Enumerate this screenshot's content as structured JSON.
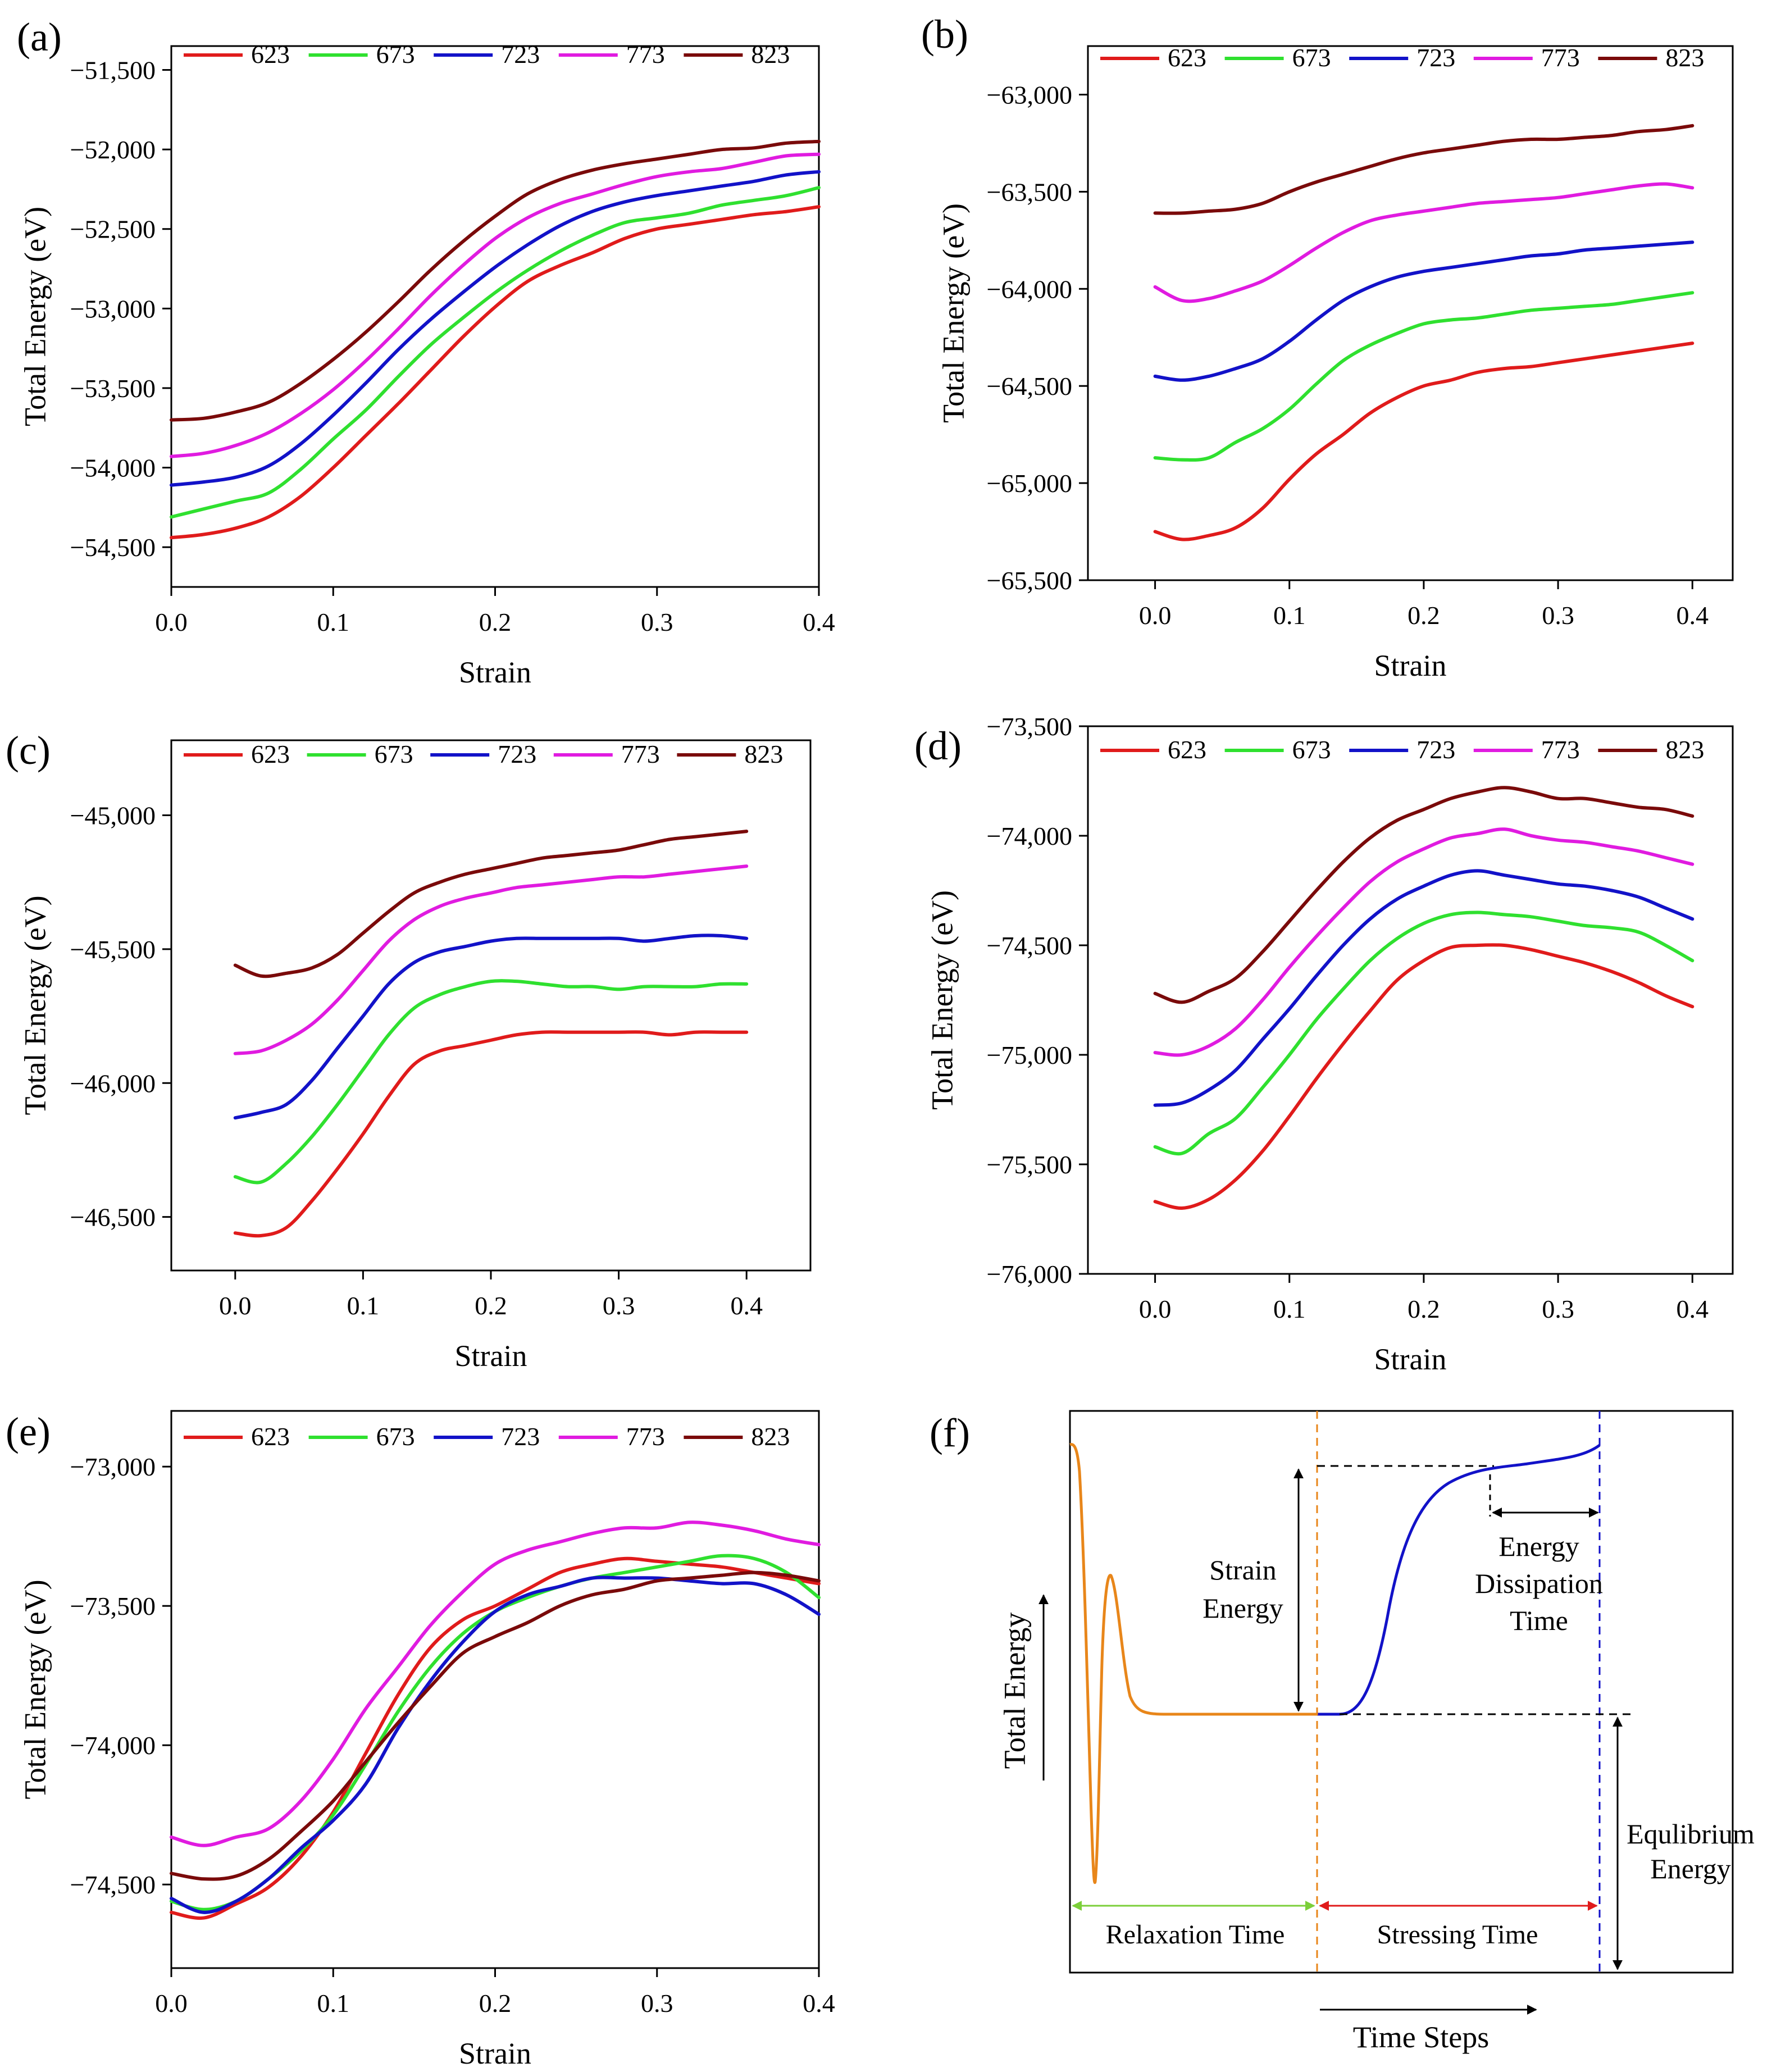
{
  "figure": {
    "series_labels": [
      "623",
      "673",
      "723",
      "773",
      "823"
    ],
    "series_colors": [
      "#e01b1b",
      "#2fe02f",
      "#1212c8",
      "#e01be0",
      "#7a0a0a"
    ]
  },
  "chart_data": [
    {
      "panel": "(a)",
      "type": "line",
      "xlabel": "Strain",
      "ylabel": "Total Energy (eV)",
      "xlim": [
        0.0,
        0.4
      ],
      "ylim": [
        -54750,
        -51350
      ],
      "xticks": [
        0.0,
        0.1,
        0.2,
        0.3,
        0.4
      ],
      "xtick_labels": [
        "0.0",
        "0.1",
        "0.2",
        "0.3",
        "0.4"
      ],
      "yticks": [
        -51500,
        -52000,
        -52500,
        -53000,
        -53500,
        -54000,
        -54500
      ],
      "ytick_labels": [
        "−51,500",
        "−52,000",
        "−52,500",
        "−53,000",
        "−53,500",
        "−54,000",
        "−54,500"
      ],
      "legend": "top",
      "x": [
        0.0,
        0.02,
        0.04,
        0.06,
        0.08,
        0.1,
        0.12,
        0.14,
        0.16,
        0.18,
        0.2,
        0.22,
        0.24,
        0.26,
        0.28,
        0.3,
        0.32,
        0.34,
        0.36,
        0.38,
        0.4
      ],
      "series": [
        {
          "name": "623",
          "values": [
            -54440,
            -54420,
            -54380,
            -54310,
            -54180,
            -54000,
            -53800,
            -53600,
            -53390,
            -53180,
            -52990,
            -52830,
            -52730,
            -52650,
            -52560,
            -52500,
            -52470,
            -52440,
            -52410,
            -52390,
            -52360
          ]
        },
        {
          "name": "673",
          "values": [
            -54310,
            -54260,
            -54210,
            -54160,
            -54010,
            -53820,
            -53640,
            -53430,
            -53230,
            -53060,
            -52900,
            -52760,
            -52640,
            -52540,
            -52460,
            -52430,
            -52400,
            -52350,
            -52320,
            -52290,
            -52240
          ]
        },
        {
          "name": "723",
          "values": [
            -54110,
            -54090,
            -54060,
            -53990,
            -53850,
            -53670,
            -53470,
            -53260,
            -53070,
            -52900,
            -52740,
            -52600,
            -52480,
            -52390,
            -52330,
            -52290,
            -52260,
            -52230,
            -52200,
            -52160,
            -52140
          ]
        },
        {
          "name": "773",
          "values": [
            -53930,
            -53910,
            -53860,
            -53780,
            -53660,
            -53510,
            -53330,
            -53130,
            -52920,
            -52730,
            -52560,
            -52430,
            -52340,
            -52280,
            -52220,
            -52170,
            -52140,
            -52120,
            -52080,
            -52040,
            -52030
          ]
        },
        {
          "name": "823",
          "values": [
            -53700,
            -53690,
            -53650,
            -53590,
            -53470,
            -53320,
            -53150,
            -52960,
            -52760,
            -52580,
            -52420,
            -52280,
            -52190,
            -52130,
            -52090,
            -52060,
            -52030,
            -52000,
            -51990,
            -51960,
            -51950
          ]
        }
      ]
    },
    {
      "panel": "(b)",
      "type": "line",
      "xlabel": "Strain",
      "ylabel": "Total Energy (eV)",
      "xlim": [
        -0.05,
        0.43
      ],
      "ylim": [
        -65500,
        -62750
      ],
      "xticks": [
        0.0,
        0.1,
        0.2,
        0.3,
        0.4
      ],
      "xtick_labels": [
        "0.0",
        "0.1",
        "0.2",
        "0.3",
        "0.4"
      ],
      "yticks": [
        -63000,
        -63500,
        -64000,
        -64500,
        -65000,
        -65500
      ],
      "ytick_labels": [
        "−63,000",
        "−63,500",
        "−64,000",
        "−64,500",
        "−65,000",
        "−65,500"
      ],
      "legend": "top",
      "x": [
        0.0,
        0.02,
        0.04,
        0.06,
        0.08,
        0.1,
        0.12,
        0.14,
        0.16,
        0.18,
        0.2,
        0.22,
        0.24,
        0.26,
        0.28,
        0.3,
        0.32,
        0.34,
        0.36,
        0.38,
        0.4
      ],
      "series": [
        {
          "name": "623",
          "values": [
            -65250,
            -65290,
            -65270,
            -65230,
            -65130,
            -64980,
            -64850,
            -64750,
            -64640,
            -64560,
            -64500,
            -64470,
            -64430,
            -64410,
            -64400,
            -64380,
            -64360,
            -64340,
            -64320,
            -64300,
            -64280
          ]
        },
        {
          "name": "673",
          "values": [
            -64870,
            -64880,
            -64870,
            -64790,
            -64720,
            -64620,
            -64490,
            -64370,
            -64290,
            -64230,
            -64180,
            -64160,
            -64150,
            -64130,
            -64110,
            -64100,
            -64090,
            -64080,
            -64060,
            -64040,
            -64020
          ]
        },
        {
          "name": "723",
          "values": [
            -64450,
            -64470,
            -64450,
            -64410,
            -64360,
            -64270,
            -64160,
            -64060,
            -63990,
            -63940,
            -63910,
            -63890,
            -63870,
            -63850,
            -63830,
            -63820,
            -63800,
            -63790,
            -63780,
            -63770,
            -63760
          ]
        },
        {
          "name": "773",
          "values": [
            -63990,
            -64060,
            -64050,
            -64010,
            -63960,
            -63880,
            -63790,
            -63710,
            -63650,
            -63620,
            -63600,
            -63580,
            -63560,
            -63550,
            -63540,
            -63530,
            -63510,
            -63490,
            -63470,
            -63460,
            -63480
          ]
        },
        {
          "name": "823",
          "values": [
            -63610,
            -63610,
            -63600,
            -63590,
            -63560,
            -63500,
            -63450,
            -63410,
            -63370,
            -63330,
            -63300,
            -63280,
            -63260,
            -63240,
            -63230,
            -63230,
            -63220,
            -63210,
            -63190,
            -63180,
            -63160
          ]
        }
      ]
    },
    {
      "panel": "(c)",
      "type": "line",
      "xlabel": "Strain",
      "ylabel": "Total Energy (eV)",
      "xlim": [
        -0.05,
        0.45
      ],
      "ylim": [
        -46700,
        -44720
      ],
      "xticks": [
        0.0,
        0.1,
        0.2,
        0.3,
        0.4
      ],
      "xtick_labels": [
        "0.0",
        "0.1",
        "0.2",
        "0.3",
        "0.4"
      ],
      "yticks": [
        -45000,
        -45500,
        -46000,
        -46500
      ],
      "ytick_labels": [
        "−45,000",
        "−45,500",
        "−46,000",
        "−46,500"
      ],
      "legend": "top",
      "x": [
        0.0,
        0.02,
        0.04,
        0.06,
        0.08,
        0.1,
        0.12,
        0.14,
        0.16,
        0.18,
        0.2,
        0.22,
        0.24,
        0.26,
        0.28,
        0.3,
        0.32,
        0.34,
        0.36,
        0.38,
        0.4
      ],
      "series": [
        {
          "name": "623",
          "values": [
            -46560,
            -46570,
            -46540,
            -46440,
            -46320,
            -46190,
            -46050,
            -45930,
            -45880,
            -45860,
            -45840,
            -45820,
            -45810,
            -45810,
            -45810,
            -45810,
            -45810,
            -45820,
            -45810,
            -45810,
            -45810
          ]
        },
        {
          "name": "673",
          "values": [
            -46350,
            -46370,
            -46300,
            -46200,
            -46080,
            -45950,
            -45820,
            -45720,
            -45670,
            -45640,
            -45620,
            -45620,
            -45630,
            -45640,
            -45640,
            -45650,
            -45640,
            -45640,
            -45640,
            -45630,
            -45630
          ]
        },
        {
          "name": "723",
          "values": [
            -46130,
            -46110,
            -46080,
            -45990,
            -45870,
            -45750,
            -45630,
            -45550,
            -45510,
            -45490,
            -45470,
            -45460,
            -45460,
            -45460,
            -45460,
            -45460,
            -45470,
            -45460,
            -45450,
            -45450,
            -45460
          ]
        },
        {
          "name": "773",
          "values": [
            -45890,
            -45880,
            -45840,
            -45780,
            -45690,
            -45580,
            -45470,
            -45390,
            -45340,
            -45310,
            -45290,
            -45270,
            -45260,
            -45250,
            -45240,
            -45230,
            -45230,
            -45220,
            -45210,
            -45200,
            -45190
          ]
        },
        {
          "name": "823",
          "values": [
            -45560,
            -45600,
            -45590,
            -45570,
            -45520,
            -45440,
            -45360,
            -45290,
            -45250,
            -45220,
            -45200,
            -45180,
            -45160,
            -45150,
            -45140,
            -45130,
            -45110,
            -45090,
            -45080,
            -45070,
            -45060
          ]
        }
      ]
    },
    {
      "panel": "(d)",
      "type": "line",
      "xlabel": "Strain",
      "ylabel": "Total Energy (eV)",
      "xlim": [
        -0.05,
        0.43
      ],
      "ylim": [
        -76000,
        -73500
      ],
      "xticks": [
        0.0,
        0.1,
        0.2,
        0.3,
        0.4
      ],
      "xtick_labels": [
        "0.0",
        "0.1",
        "0.2",
        "0.3",
        "0.4"
      ],
      "yticks": [
        -73500,
        -74000,
        -74500,
        -75000,
        -75500,
        -76000
      ],
      "ytick_labels": [
        "−73,500",
        "−74,000",
        "−74,500",
        "−75,000",
        "−75,500",
        "−76,000"
      ],
      "legend": "top",
      "x": [
        0.0,
        0.02,
        0.04,
        0.06,
        0.08,
        0.1,
        0.12,
        0.14,
        0.16,
        0.18,
        0.2,
        0.22,
        0.24,
        0.26,
        0.28,
        0.3,
        0.32,
        0.34,
        0.36,
        0.38,
        0.4
      ],
      "series": [
        {
          "name": "623",
          "values": [
            -75670,
            -75700,
            -75660,
            -75570,
            -75440,
            -75280,
            -75110,
            -74950,
            -74800,
            -74660,
            -74570,
            -74510,
            -74500,
            -74500,
            -74520,
            -74550,
            -74580,
            -74620,
            -74670,
            -74730,
            -74780
          ]
        },
        {
          "name": "673",
          "values": [
            -75420,
            -75450,
            -75360,
            -75290,
            -75150,
            -75000,
            -74840,
            -74700,
            -74570,
            -74470,
            -74400,
            -74360,
            -74350,
            -74360,
            -74370,
            -74390,
            -74410,
            -74420,
            -74440,
            -74500,
            -74570
          ]
        },
        {
          "name": "723",
          "values": [
            -75230,
            -75220,
            -75160,
            -75070,
            -74930,
            -74790,
            -74640,
            -74500,
            -74380,
            -74290,
            -74230,
            -74180,
            -74160,
            -74180,
            -74200,
            -74220,
            -74230,
            -74250,
            -74280,
            -74330,
            -74380
          ]
        },
        {
          "name": "773",
          "values": [
            -74990,
            -75000,
            -74960,
            -74880,
            -74750,
            -74600,
            -74460,
            -74330,
            -74210,
            -74120,
            -74060,
            -74010,
            -73990,
            -73970,
            -74000,
            -74020,
            -74030,
            -74050,
            -74070,
            -74100,
            -74130
          ]
        },
        {
          "name": "823",
          "values": [
            -74720,
            -74760,
            -74710,
            -74650,
            -74530,
            -74390,
            -74250,
            -74120,
            -74010,
            -73930,
            -73880,
            -73830,
            -73800,
            -73780,
            -73800,
            -73830,
            -73830,
            -73850,
            -73870,
            -73880,
            -73910
          ]
        }
      ]
    },
    {
      "panel": "(e)",
      "type": "line",
      "xlabel": "Strain",
      "ylabel": "Total Energy (eV)",
      "xlim": [
        0.0,
        0.4
      ],
      "ylim": [
        -74800,
        -72800
      ],
      "xticks": [
        0.0,
        0.1,
        0.2,
        0.3,
        0.4
      ],
      "xtick_labels": [
        "0.0",
        "0.1",
        "0.2",
        "0.3",
        "0.4"
      ],
      "yticks": [
        -73000,
        -73500,
        -74000,
        -74500
      ],
      "ytick_labels": [
        "−73,000",
        "−73,500",
        "−74,000",
        "−74,500"
      ],
      "legend": "top",
      "x": [
        0.0,
        0.02,
        0.04,
        0.06,
        0.08,
        0.1,
        0.12,
        0.14,
        0.16,
        0.18,
        0.2,
        0.22,
        0.24,
        0.26,
        0.28,
        0.3,
        0.32,
        0.34,
        0.36,
        0.38,
        0.4
      ],
      "series": [
        {
          "name": "623",
          "values": [
            -74600,
            -74620,
            -74570,
            -74510,
            -74400,
            -74240,
            -74030,
            -73820,
            -73650,
            -73550,
            -73500,
            -73440,
            -73380,
            -73350,
            -73330,
            -73340,
            -73350,
            -73360,
            -73380,
            -73400,
            -73420
          ]
        },
        {
          "name": "673",
          "values": [
            -74560,
            -74590,
            -74560,
            -74480,
            -74380,
            -74250,
            -74070,
            -73880,
            -73720,
            -73600,
            -73520,
            -73470,
            -73430,
            -73400,
            -73380,
            -73360,
            -73340,
            -73320,
            -73330,
            -73380,
            -73470
          ]
        },
        {
          "name": "723",
          "values": [
            -74550,
            -74600,
            -74560,
            -74480,
            -74370,
            -74270,
            -74140,
            -73940,
            -73770,
            -73630,
            -73520,
            -73460,
            -73430,
            -73400,
            -73400,
            -73400,
            -73410,
            -73420,
            -73420,
            -73460,
            -73530
          ]
        },
        {
          "name": "773",
          "values": [
            -74330,
            -74360,
            -74330,
            -74300,
            -74200,
            -74050,
            -73870,
            -73720,
            -73570,
            -73450,
            -73350,
            -73300,
            -73270,
            -73240,
            -73220,
            -73220,
            -73200,
            -73210,
            -73230,
            -73260,
            -73280
          ]
        },
        {
          "name": "823",
          "values": [
            -74460,
            -74480,
            -74470,
            -74410,
            -74310,
            -74200,
            -74060,
            -73920,
            -73790,
            -73670,
            -73610,
            -73560,
            -73500,
            -73460,
            -73440,
            -73410,
            -73400,
            -73390,
            -73380,
            -73390,
            -73410
          ]
        }
      ]
    },
    {
      "panel": "(f)",
      "type": "schematic",
      "ylabel": "Total Energy",
      "xlabel": "Time Steps",
      "annotations": {
        "strain_energy": "Strain Energy",
        "energy_dissipation_time": "Energy Dissipation Time",
        "equilibrium_energy": "Equlibrium Energy",
        "relaxation_time": "Relaxation Time",
        "stressing_time": "Stressing Time"
      },
      "phases": [
        {
          "name": "Relaxation Time",
          "color": "#e8861a",
          "description": "sharp drop, oscillation, then flat at equilibrium energy"
        },
        {
          "name": "Stressing Time",
          "color": "#1212c8",
          "description": "sigmoidal rise then slow plateau"
        }
      ]
    }
  ],
  "annotation_colors": {
    "relaxation": "#7ccf3a",
    "stressing": "#e01b1b",
    "orange": "#e8861a",
    "blue": "#1212c8"
  }
}
